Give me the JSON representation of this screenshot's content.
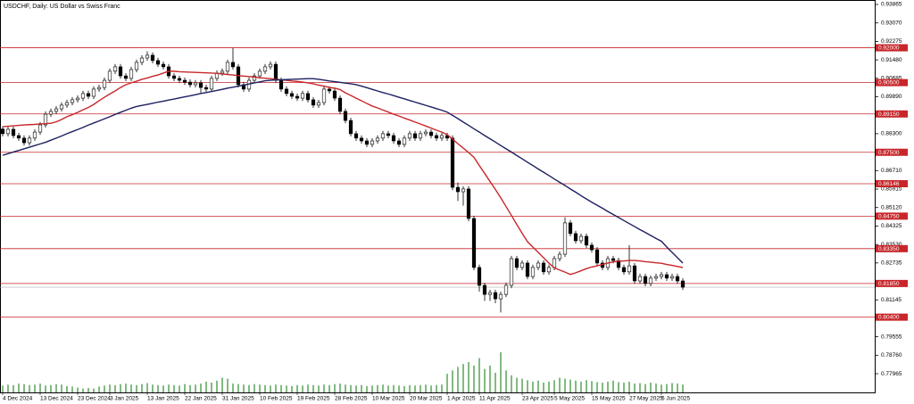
{
  "chart_data": {
    "type": "candlestick",
    "title": "USDCHF, Daily:  US Dollar vs Swiss Franc",
    "categories": [
      "4 Dec 2024",
      null,
      null,
      null,
      null,
      null,
      null,
      "13 Dec 2024",
      null,
      null,
      null,
      null,
      null,
      null,
      "23 Dec 2024",
      null,
      null,
      null,
      null,
      null,
      "3 Jan 2025",
      null,
      null,
      null,
      null,
      null,
      null,
      "13 Jan 2025",
      null,
      null,
      null,
      null,
      null,
      null,
      "22 Jan 2025",
      null,
      null,
      null,
      null,
      null,
      null,
      "31 Jan 2025",
      null,
      null,
      null,
      null,
      null,
      null,
      "10 Feb 2025",
      null,
      null,
      null,
      null,
      null,
      null,
      "19 Feb 2025",
      null,
      null,
      null,
      null,
      null,
      null,
      "28 Feb 2025",
      null,
      null,
      null,
      null,
      null,
      null,
      "10 Mar 2025",
      null,
      null,
      null,
      null,
      null,
      null,
      "20 Mar 2025",
      null,
      null,
      null,
      null,
      null,
      null,
      "1 Apr 2025",
      null,
      null,
      null,
      null,
      null,
      "11 Apr 2025",
      null,
      null,
      null,
      null,
      null,
      null,
      null,
      "23 Apr 2025",
      null,
      null,
      null,
      null,
      null,
      "5 May 2025",
      null,
      null,
      null,
      null,
      null,
      null,
      "15 May 2025",
      null,
      null,
      null,
      null,
      null,
      null,
      "27 May 2025",
      null,
      null,
      null,
      null,
      null,
      "6 Jun 2025",
      null,
      null,
      null,
      null
    ],
    "open": [
      0.885,
      0.883,
      0.8849,
      0.8822,
      0.8811,
      0.8791,
      0.8811,
      0.8837,
      0.8868,
      0.8914,
      0.8926,
      0.8937,
      0.8953,
      0.8964,
      0.8976,
      0.8983,
      0.9003,
      0.8991,
      0.9022,
      0.9029,
      0.906,
      0.9099,
      0.9118,
      0.9079,
      0.9068,
      0.9106,
      0.9137,
      0.9156,
      0.9168,
      0.9145,
      0.9129,
      0.9118,
      0.9079,
      0.9068,
      0.906,
      0.9052,
      0.9041,
      0.9049,
      0.9029,
      0.9022,
      0.9068,
      0.9091,
      0.9099,
      0.9137,
      0.9118,
      0.9041,
      0.9022,
      0.906,
      0.9079,
      0.9099,
      0.9118,
      0.9129,
      0.906,
      0.9022,
      0.9003,
      0.8991,
      0.8983,
      0.9003,
      0.8976,
      0.8953,
      0.8964,
      0.9022,
      0.9014,
      0.8983,
      0.8926,
      0.8887,
      0.883,
      0.8811,
      0.8799,
      0.8784,
      0.8799,
      0.8811,
      0.883,
      0.8822,
      0.8799,
      0.8784,
      0.8811,
      0.883,
      0.8811,
      0.883,
      0.8837,
      0.8822,
      0.8811,
      0.8822,
      0.8811,
      0.8599,
      0.858,
      0.8592,
      0.8465,
      0.8254,
      0.8177,
      0.8138,
      0.8146,
      0.8119,
      0.8138,
      0.8177,
      0.8292,
      0.8254,
      0.8273,
      0.8215,
      0.8254,
      0.8273,
      0.8235,
      0.8254,
      0.8292,
      0.8311,
      0.8446,
      0.84,
      0.8369,
      0.8388,
      0.835,
      0.833,
      0.8273,
      0.8254,
      0.8292,
      0.8284,
      0.8254,
      0.8235,
      0.8261,
      0.8196,
      0.8215,
      0.8185,
      0.8208,
      0.8215,
      0.8223,
      0.8208,
      0.8215,
      0.8196
    ],
    "high": [
      0.8862,
      0.8861,
      0.8861,
      0.8834,
      0.8823,
      0.8823,
      0.8849,
      0.888,
      0.8926,
      0.8938,
      0.8949,
      0.8965,
      0.8976,
      0.8988,
      0.8995,
      0.9015,
      0.9015,
      0.9034,
      0.9041,
      0.9072,
      0.9111,
      0.913,
      0.913,
      0.9091,
      0.9118,
      0.9149,
      0.9168,
      0.9185,
      0.918,
      0.9157,
      0.9141,
      0.913,
      0.9091,
      0.908,
      0.9072,
      0.9064,
      0.9061,
      0.9061,
      0.9041,
      0.908,
      0.9103,
      0.9111,
      0.9149,
      0.92,
      0.913,
      0.9053,
      0.9072,
      0.9091,
      0.9111,
      0.913,
      0.9141,
      0.9141,
      0.9072,
      0.9034,
      0.9015,
      0.9003,
      0.9015,
      0.9015,
      0.8988,
      0.8976,
      0.9034,
      0.9034,
      0.9026,
      0.8995,
      0.8938,
      0.8899,
      0.8842,
      0.8823,
      0.8811,
      0.8811,
      0.8823,
      0.8842,
      0.8842,
      0.8834,
      0.8811,
      0.8823,
      0.8842,
      0.8842,
      0.8842,
      0.8849,
      0.8849,
      0.8834,
      0.8834,
      0.8834,
      0.8823,
      0.862,
      0.8604,
      0.8604,
      0.8477,
      0.8266,
      0.8189,
      0.8158,
      0.8158,
      0.815,
      0.8189,
      0.8304,
      0.8304,
      0.8285,
      0.8285,
      0.8266,
      0.8285,
      0.8285,
      0.8266,
      0.8304,
      0.8323,
      0.847,
      0.8458,
      0.8412,
      0.84,
      0.84,
      0.8362,
      0.8342,
      0.8285,
      0.8304,
      0.8304,
      0.8296,
      0.8266,
      0.835,
      0.8273,
      0.8227,
      0.8227,
      0.822,
      0.8227,
      0.8235,
      0.8235,
      0.8227,
      0.8227,
      0.8208
    ],
    "low": [
      0.8818,
      0.8818,
      0.881,
      0.8799,
      0.8779,
      0.8779,
      0.8799,
      0.8825,
      0.8856,
      0.8902,
      0.8914,
      0.8925,
      0.8941,
      0.8952,
      0.8964,
      0.8971,
      0.8979,
      0.8979,
      0.901,
      0.9017,
      0.9048,
      0.9087,
      0.9067,
      0.9056,
      0.9056,
      0.9094,
      0.9125,
      0.9144,
      0.9133,
      0.9117,
      0.9106,
      0.9067,
      0.9056,
      0.9048,
      0.904,
      0.9029,
      0.9029,
      0.9005,
      0.901,
      0.901,
      0.9056,
      0.9079,
      0.9087,
      0.9106,
      0.9029,
      0.901,
      0.901,
      0.9048,
      0.9067,
      0.9087,
      0.9106,
      0.9048,
      0.901,
      0.8991,
      0.8979,
      0.8971,
      0.8971,
      0.8964,
      0.8941,
      0.8941,
      0.8952,
      0.9002,
      0.8971,
      0.8914,
      0.8875,
      0.8818,
      0.8799,
      0.8787,
      0.8772,
      0.8772,
      0.8787,
      0.8799,
      0.881,
      0.8787,
      0.8772,
      0.8772,
      0.8799,
      0.8799,
      0.8799,
      0.8818,
      0.881,
      0.8799,
      0.8799,
      0.8799,
      0.8587,
      0.854,
      0.852,
      0.8453,
      0.8242,
      0.815,
      0.811,
      0.811,
      0.81,
      0.806,
      0.8126,
      0.8165,
      0.8242,
      0.8242,
      0.8203,
      0.8203,
      0.8242,
      0.8223,
      0.8223,
      0.8242,
      0.828,
      0.8299,
      0.8388,
      0.8357,
      0.8357,
      0.8338,
      0.8318,
      0.8261,
      0.8242,
      0.8242,
      0.8272,
      0.8242,
      0.8223,
      0.8223,
      0.8184,
      0.8184,
      0.8173,
      0.8173,
      0.8196,
      0.8203,
      0.8196,
      0.8196,
      0.8184,
      0.8157
    ],
    "close": [
      0.883,
      0.8849,
      0.8822,
      0.8811,
      0.8791,
      0.8811,
      0.8837,
      0.8868,
      0.8914,
      0.8926,
      0.8937,
      0.8953,
      0.8964,
      0.8976,
      0.8983,
      0.9003,
      0.8991,
      0.9022,
      0.9029,
      0.906,
      0.9099,
      0.9118,
      0.9079,
      0.9068,
      0.9106,
      0.9137,
      0.9156,
      0.9168,
      0.9145,
      0.9129,
      0.9118,
      0.9079,
      0.9068,
      0.906,
      0.9052,
      0.9041,
      0.9049,
      0.9029,
      0.9022,
      0.9068,
      0.9091,
      0.9099,
      0.9137,
      0.9118,
      0.9041,
      0.9022,
      0.906,
      0.9079,
      0.9099,
      0.9118,
      0.9129,
      0.906,
      0.9022,
      0.9003,
      0.8991,
      0.8983,
      0.9003,
      0.8976,
      0.8953,
      0.8964,
      0.9022,
      0.9014,
      0.8983,
      0.8926,
      0.8887,
      0.883,
      0.8811,
      0.8799,
      0.8784,
      0.8799,
      0.8811,
      0.883,
      0.8822,
      0.8799,
      0.8784,
      0.8811,
      0.883,
      0.8811,
      0.883,
      0.8837,
      0.8822,
      0.8811,
      0.8822,
      0.8811,
      0.8599,
      0.858,
      0.8592,
      0.8465,
      0.8254,
      0.8177,
      0.8138,
      0.8146,
      0.8119,
      0.8138,
      0.8177,
      0.8292,
      0.8254,
      0.8273,
      0.8215,
      0.8254,
      0.8273,
      0.8235,
      0.8254,
      0.8292,
      0.8311,
      0.8446,
      0.84,
      0.8369,
      0.8388,
      0.835,
      0.833,
      0.8273,
      0.8254,
      0.8292,
      0.8284,
      0.8254,
      0.8235,
      0.8261,
      0.8196,
      0.8215,
      0.8185,
      0.8208,
      0.8215,
      0.8223,
      0.8208,
      0.8215,
      0.8196,
      0.8169
    ],
    "volume": [
      14,
      16,
      15,
      18,
      17,
      15,
      16,
      18,
      14,
      15,
      17,
      16,
      13,
      12,
      10,
      8,
      9,
      8,
      12,
      14,
      16,
      15,
      17,
      18,
      16,
      15,
      17,
      19,
      16,
      15,
      14,
      16,
      15,
      14,
      17,
      15,
      16,
      18,
      22,
      20,
      24,
      30,
      28,
      18,
      17,
      16,
      15,
      17,
      16,
      15,
      14,
      16,
      15,
      14,
      13,
      15,
      14,
      16,
      15,
      14,
      16,
      15,
      17,
      18,
      16,
      15,
      14,
      15,
      13,
      14,
      15,
      16,
      14,
      15,
      14,
      13,
      15,
      14,
      15,
      16,
      14,
      15,
      16,
      38,
      45,
      52,
      58,
      62,
      55,
      70,
      48,
      55,
      40,
      82,
      45,
      35,
      30,
      28,
      25,
      22,
      24,
      20,
      22,
      25,
      30,
      28,
      26,
      24,
      22,
      25,
      23,
      21,
      20,
      22,
      24,
      21,
      20,
      22,
      18,
      19,
      17,
      20,
      18,
      16,
      17,
      19,
      18,
      16
    ],
    "volume_color": "#2e8b2e",
    "moving_averages": [
      {
        "color": "#c8262a",
        "values": [
          0.886,
          0.8862,
          0.8864,
          0.8866,
          0.8868,
          0.8869,
          0.887,
          0.8872,
          0.8873,
          0.8875,
          0.8881,
          0.8891,
          0.8903,
          0.8912,
          0.8922,
          0.8933,
          0.8943,
          0.8956,
          0.8972,
          0.8987,
          0.9001,
          0.9014,
          0.9029,
          0.9041,
          0.9049,
          0.9056,
          0.9064,
          0.907,
          0.9077,
          0.9083,
          0.9091,
          0.9099,
          0.9099,
          0.9097,
          0.9096,
          0.9095,
          0.9094,
          0.9093,
          0.9092,
          0.9091,
          0.909,
          0.9087,
          0.9085,
          0.9083,
          0.908,
          0.9078,
          0.9076,
          0.9074,
          0.9071,
          0.9069,
          0.9067,
          0.9064,
          0.9062,
          0.906,
          0.9057,
          0.9055,
          0.9052,
          0.9049,
          0.9045,
          0.9039,
          0.9035,
          0.9029,
          0.9026,
          0.902,
          0.9006,
          0.8995,
          0.8983,
          0.8972,
          0.896,
          0.8949,
          0.8941,
          0.8932,
          0.8923,
          0.8914,
          0.8906,
          0.8897,
          0.8889,
          0.888,
          0.8872,
          0.8863,
          0.8854,
          0.8845,
          0.8837,
          0.8826,
          0.8807,
          0.8787,
          0.8768,
          0.8749,
          0.8728,
          0.8693,
          0.8659,
          0.8624,
          0.859,
          0.8554,
          0.8516,
          0.8478,
          0.8439,
          0.8401,
          0.8365,
          0.8342,
          0.8319,
          0.8296,
          0.8273,
          0.8252,
          0.8243,
          0.8234,
          0.8224,
          0.8231,
          0.824,
          0.8249,
          0.8256,
          0.8261,
          0.8267,
          0.8273,
          0.8278,
          0.8281,
          0.8282,
          0.8284,
          0.8284,
          0.8282,
          0.8279,
          0.8277,
          0.8274,
          0.8272,
          0.8267,
          0.8263,
          0.8258,
          0.8254
        ]
      },
      {
        "color": "#1c2060",
        "values": [
          0.8737,
          0.8744,
          0.8751,
          0.8758,
          0.8765,
          0.8772,
          0.8779,
          0.8786,
          0.8793,
          0.8802,
          0.8811,
          0.882,
          0.883,
          0.8839,
          0.8848,
          0.8857,
          0.8867,
          0.8876,
          0.8885,
          0.8894,
          0.8903,
          0.8913,
          0.8922,
          0.8931,
          0.894,
          0.8947,
          0.8952,
          0.8956,
          0.8961,
          0.8966,
          0.897,
          0.8975,
          0.8979,
          0.8984,
          0.8989,
          0.8993,
          0.8998,
          0.9003,
          0.9007,
          0.9012,
          0.9016,
          0.9021,
          0.9026,
          0.903,
          0.9035,
          0.9039,
          0.9044,
          0.9049,
          0.9053,
          0.9058,
          0.906,
          0.9062,
          0.9062,
          0.9063,
          0.9064,
          0.9065,
          0.9066,
          0.9067,
          0.9067,
          0.9064,
          0.9061,
          0.9057,
          0.9054,
          0.9051,
          0.9048,
          0.9045,
          0.9041,
          0.9035,
          0.9028,
          0.9021,
          0.9014,
          0.9007,
          0.9001,
          0.8994,
          0.8987,
          0.898,
          0.8973,
          0.8966,
          0.8959,
          0.8952,
          0.8945,
          0.8938,
          0.8931,
          0.8923,
          0.8909,
          0.8895,
          0.888,
          0.8866,
          0.8851,
          0.8837,
          0.8822,
          0.8808,
          0.8794,
          0.8779,
          0.8765,
          0.8751,
          0.8736,
          0.8722,
          0.8707,
          0.8693,
          0.8678,
          0.8664,
          0.865,
          0.8635,
          0.8621,
          0.8607,
          0.8592,
          0.8578,
          0.8563,
          0.8549,
          0.8535,
          0.8522,
          0.8509,
          0.8495,
          0.8482,
          0.8469,
          0.8456,
          0.8443,
          0.843,
          0.8417,
          0.8405,
          0.8392,
          0.8379,
          0.8367,
          0.8342,
          0.8319,
          0.8296,
          0.8273
        ]
      }
    ],
    "hlines": {
      "color": "#c8262a",
      "levels": [
        {
          "value": 0.92,
          "label": "0.92000"
        },
        {
          "value": 0.905,
          "label": "0.90500"
        },
        {
          "value": 0.8915,
          "label": "0.89150"
        },
        {
          "value": 0.875,
          "label": "0.87500"
        },
        {
          "value": 0.86146,
          "label": "0.86146"
        },
        {
          "value": 0.8475,
          "label": "0.84750"
        },
        {
          "value": 0.8335,
          "label": "0.83350"
        },
        {
          "value": 0.8185,
          "label": "0.81850"
        },
        {
          "value": 0.804,
          "label": "0.80400"
        }
      ]
    },
    "ylim": [
      0.7716,
      0.94057
    ],
    "yticks": [
      0.93865,
      {
        "value": 0.9307,
        "label": "0.93070"
      },
      0.92275,
      {
        "value": 0.9148,
        "label": "0.91480"
      },
      0.90685,
      {
        "value": 0.8989,
        "label": "0.89890"
      },
      {
        "value": 0.883,
        "label": "0.88300"
      },
      {
        "value": 0.8671,
        "label": "0.86710"
      },
      0.85915,
      {
        "value": 0.8512,
        "label": "0.85120"
      },
      0.84325,
      {
        "value": 0.8353,
        "label": "0.83530"
      },
      0.82735,
      0.81145,
      0.79555,
      {
        "value": 0.7876,
        "label": "0.78760"
      },
      0.77965
    ]
  }
}
